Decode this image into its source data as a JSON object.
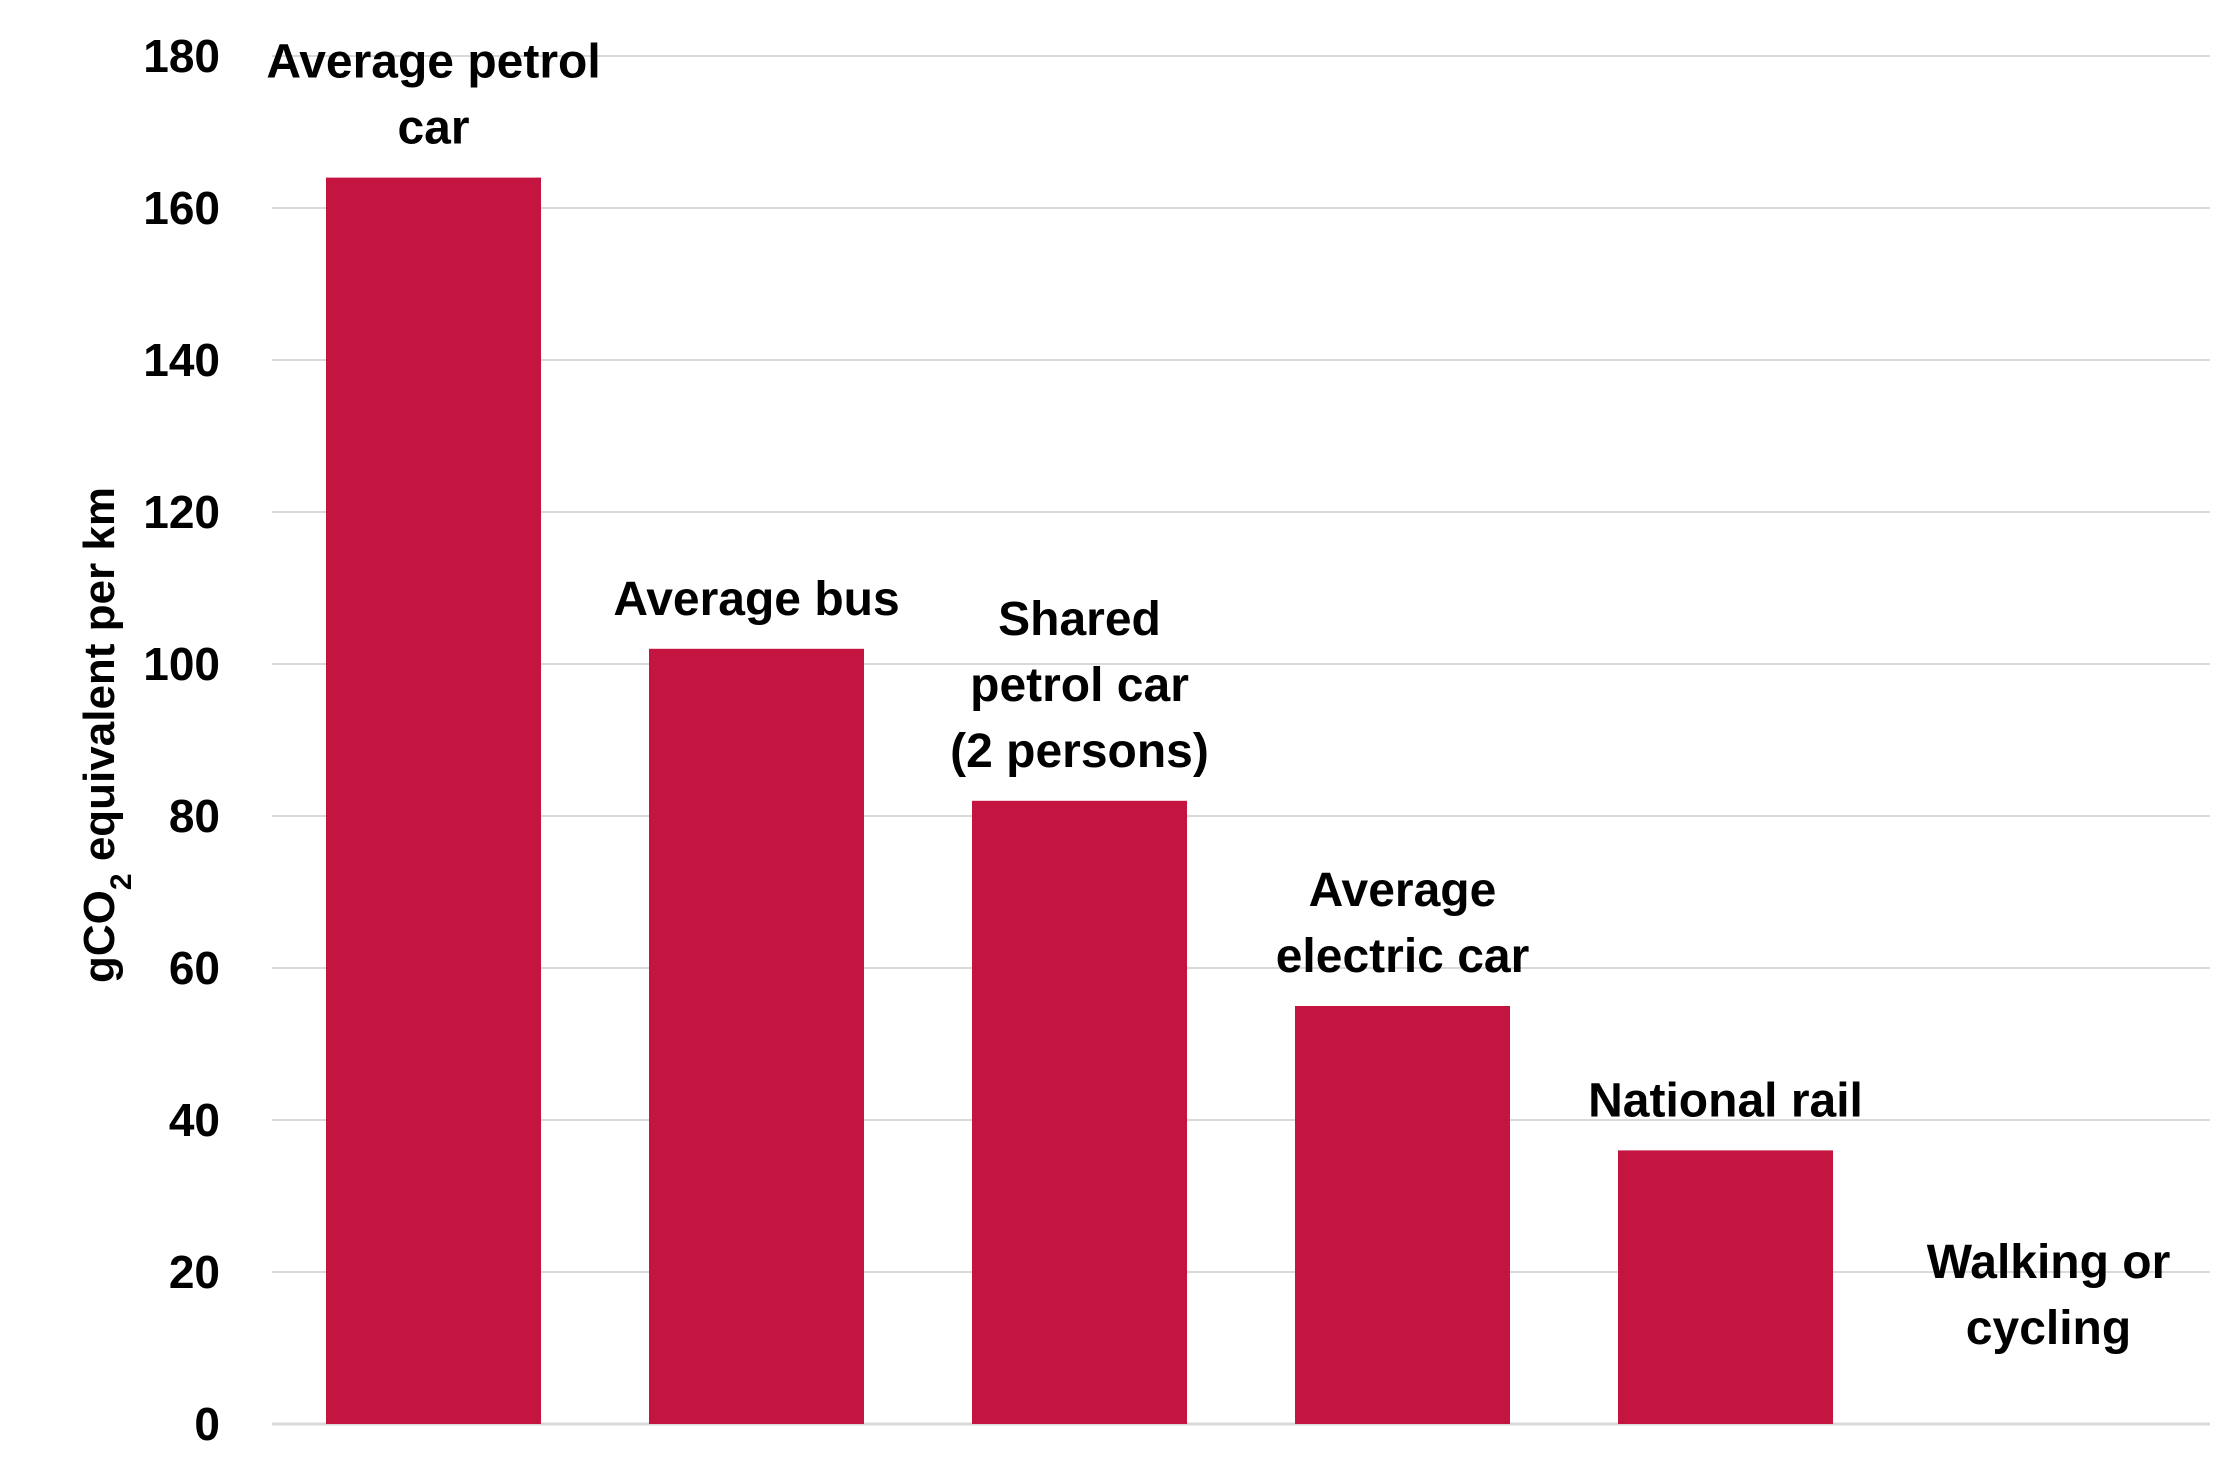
{
  "chart_data": {
    "type": "bar",
    "categories": [
      [
        "Average petrol",
        "car"
      ],
      [
        "Average bus"
      ],
      [
        "Shared",
        "petrol car",
        "(2 persons)"
      ],
      [
        "Average",
        "electric car"
      ],
      [
        "National rail"
      ],
      [
        "Walking or",
        "cycling"
      ]
    ],
    "values": [
      164,
      102,
      82,
      55,
      36,
      0
    ],
    "ylabel": {
      "prefix": "gCO",
      "subscript": "2",
      "suffix": " equivalent per km"
    },
    "ylim": [
      0,
      180
    ],
    "yticks": [
      0,
      20,
      40,
      60,
      80,
      100,
      120,
      140,
      160,
      180
    ],
    "grid": true,
    "bar_color": "#c41540",
    "grid_color": "#d9d9d9"
  }
}
